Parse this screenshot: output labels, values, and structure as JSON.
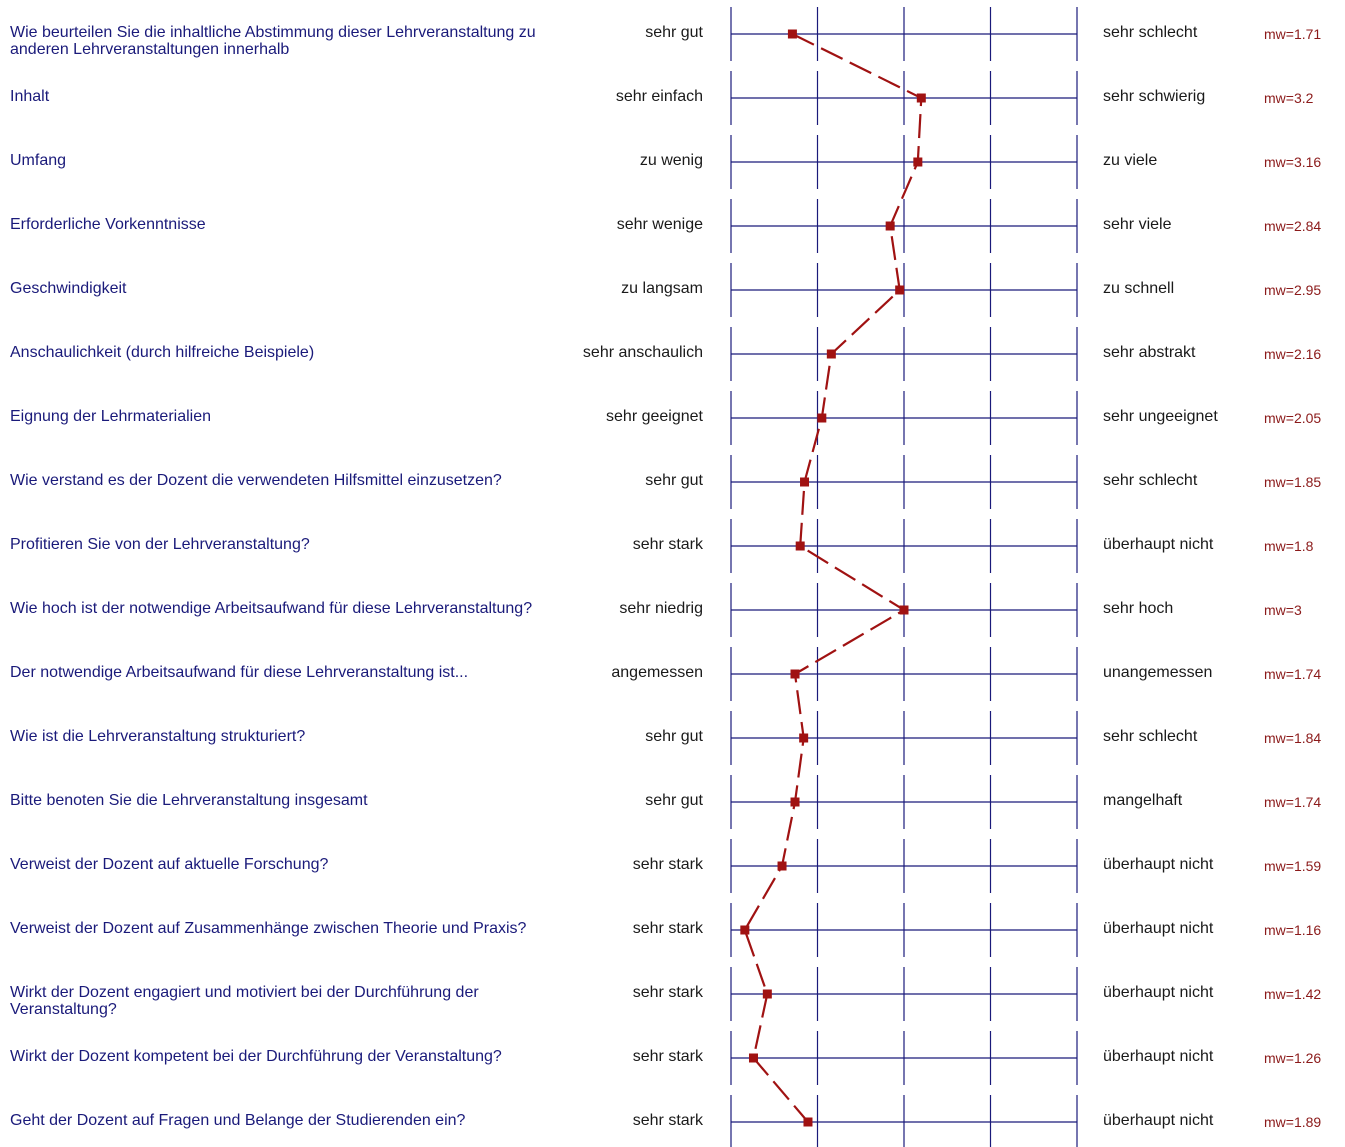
{
  "chart_data": {
    "type": "line",
    "scale": [
      1,
      5
    ],
    "line_color": "#a01212",
    "grid_color": "#1a1a7a",
    "items": [
      {
        "question": "Wie beurteilen Sie die inhaltliche Abstimmung dieser Lehrveranstaltung zu anderen Lehrveranstaltungen innerhalb",
        "left": "sehr gut",
        "right": "sehr schlecht",
        "mean": 1.71,
        "mean_label": "mw=1.71"
      },
      {
        "question": "Inhalt",
        "left": "sehr einfach",
        "right": "sehr schwierig",
        "mean": 3.2,
        "mean_label": "mw=3.2"
      },
      {
        "question": "Umfang",
        "left": "zu wenig",
        "right": "zu viele",
        "mean": 3.16,
        "mean_label": "mw=3.16"
      },
      {
        "question": "Erforderliche Vorkenntnisse",
        "left": "sehr wenige",
        "right": "sehr viele",
        "mean": 2.84,
        "mean_label": "mw=2.84"
      },
      {
        "question": "Geschwindigkeit",
        "left": "zu langsam",
        "right": "zu schnell",
        "mean": 2.95,
        "mean_label": "mw=2.95"
      },
      {
        "question": "Anschaulichkeit (durch hilfreiche Beispiele)",
        "left": "sehr anschaulich",
        "right": "sehr abstrakt",
        "mean": 2.16,
        "mean_label": "mw=2.16"
      },
      {
        "question": "Eignung der Lehrmaterialien",
        "left": "sehr geeignet",
        "right": "sehr ungeeignet",
        "mean": 2.05,
        "mean_label": "mw=2.05"
      },
      {
        "question": "Wie verstand es der Dozent die verwendeten Hilfsmittel einzusetzen?",
        "left": "sehr gut",
        "right": "sehr schlecht",
        "mean": 1.85,
        "mean_label": "mw=1.85"
      },
      {
        "question": "Profitieren Sie von der Lehrveranstaltung?",
        "left": "sehr stark",
        "right": "überhaupt nicht",
        "mean": 1.8,
        "mean_label": "mw=1.8"
      },
      {
        "question": "Wie hoch ist der notwendige Arbeitsaufwand für diese Lehrveranstaltung?",
        "left": "sehr niedrig",
        "right": "sehr hoch",
        "mean": 3,
        "mean_label": "mw=3"
      },
      {
        "question": "Der notwendige Arbeitsaufwand für diese Lehrveranstaltung ist...",
        "left": "angemessen",
        "right": "unangemessen",
        "mean": 1.74,
        "mean_label": "mw=1.74"
      },
      {
        "question": "Wie ist die Lehrveranstaltung strukturiert?",
        "left": "sehr gut",
        "right": "sehr schlecht",
        "mean": 1.84,
        "mean_label": "mw=1.84"
      },
      {
        "question": "Bitte benoten Sie die Lehrveranstaltung insgesamt",
        "left": "sehr gut",
        "right": "mangelhaft",
        "mean": 1.74,
        "mean_label": "mw=1.74"
      },
      {
        "question": "Verweist der Dozent auf aktuelle Forschung?",
        "left": "sehr stark",
        "right": "überhaupt nicht",
        "mean": 1.59,
        "mean_label": "mw=1.59"
      },
      {
        "question": "Verweist der Dozent auf Zusammenhänge zwischen Theorie und Praxis?",
        "left": "sehr stark",
        "right": "überhaupt nicht",
        "mean": 1.16,
        "mean_label": "mw=1.16"
      },
      {
        "question": "Wirkt der Dozent engagiert und motiviert bei der Durchführung der Veranstaltung?",
        "left": "sehr stark",
        "right": "überhaupt nicht",
        "mean": 1.42,
        "mean_label": "mw=1.42"
      },
      {
        "question": "Wirkt der Dozent kompetent bei der Durchführung der Veranstaltung?",
        "left": "sehr stark",
        "right": "überhaupt nicht",
        "mean": 1.26,
        "mean_label": "mw=1.26"
      },
      {
        "question": "Geht der Dozent auf Fragen und Belange der Studierenden ein?",
        "left": "sehr stark",
        "right": "überhaupt nicht",
        "mean": 1.89,
        "mean_label": "mw=1.89"
      }
    ]
  }
}
